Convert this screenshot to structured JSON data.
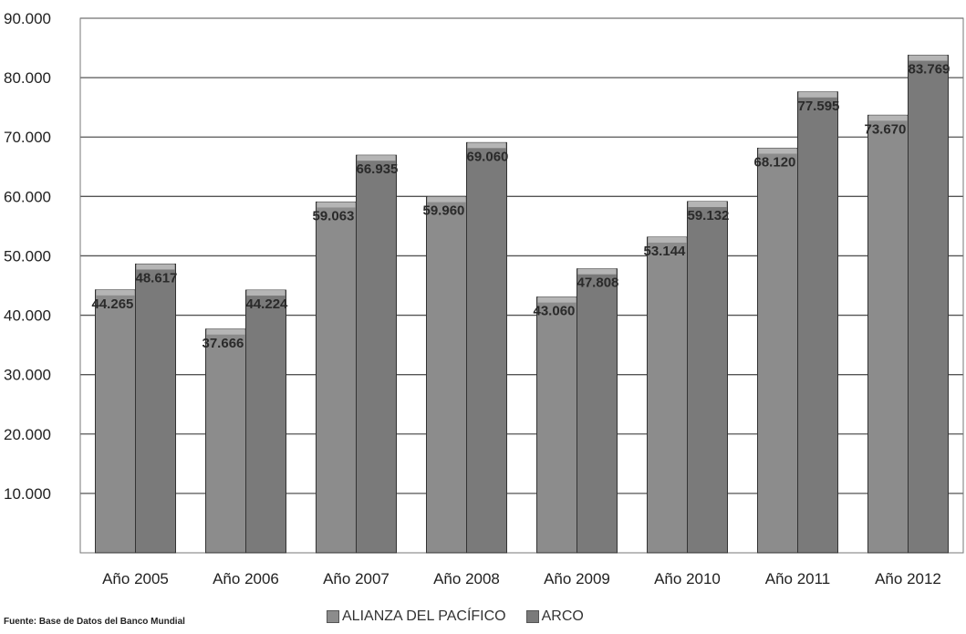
{
  "chart_data": {
    "type": "bar",
    "title": "",
    "xlabel": "",
    "ylabel": "",
    "categories": [
      "Año 2005",
      "Año 2006",
      "Año 2007",
      "Año 2008",
      "Año 2009",
      "Año 2010",
      "Año 2011",
      "Año 2012"
    ],
    "series": [
      {
        "name": "ALIANZA DEL PACÍFICO",
        "values": [
          44265,
          37666,
          59063,
          59960,
          43060,
          53144,
          68120,
          73670
        ],
        "labels": [
          "44.265",
          "37.666",
          "59.063",
          "59.960",
          "43.060",
          "53.144",
          "68.120",
          "73.670"
        ],
        "color": "#8c8c8c"
      },
      {
        "name": "ARCO",
        "values": [
          48617,
          44224,
          66935,
          69060,
          47808,
          59132,
          77595,
          83769
        ],
        "labels": [
          "48.617",
          "44.224",
          "66.935",
          "69.060",
          "47.808",
          "59.132",
          "77.595",
          "83.769"
        ],
        "color": "#7a7a7a"
      }
    ],
    "ylim": [
      0,
      90000
    ],
    "yticks": [
      10000,
      20000,
      30000,
      40000,
      50000,
      60000,
      70000,
      80000,
      90000
    ],
    "ytick_labels": [
      "10.000",
      "20.000",
      "30.000",
      "40.000",
      "50.000",
      "60.000",
      "70.000",
      "80.000",
      "90.000"
    ],
    "grid": true,
    "legend_position": "bottom"
  },
  "source_note": "Fuente: Base de Datos del Banco Mundial"
}
